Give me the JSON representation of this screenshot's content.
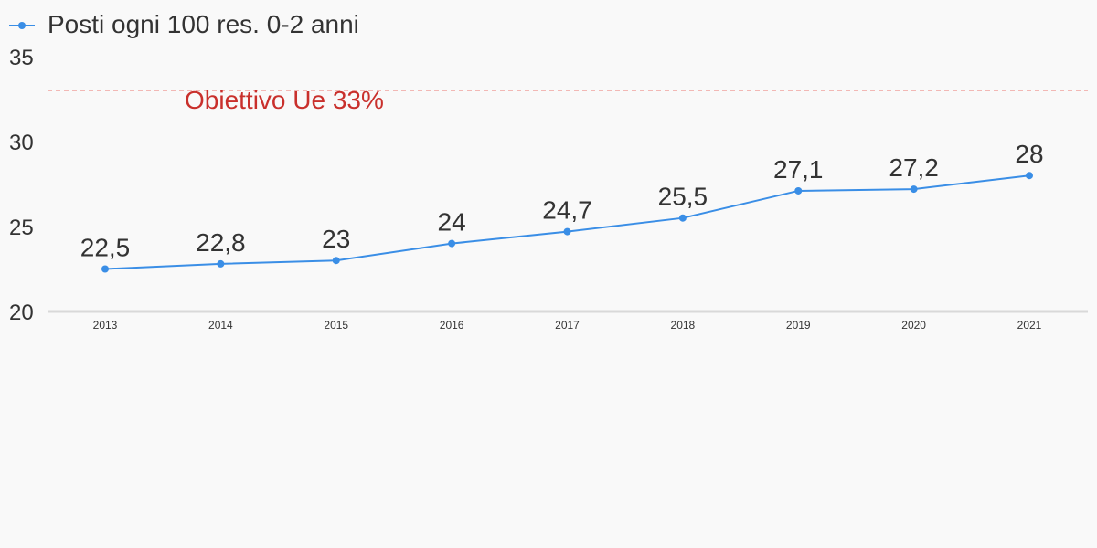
{
  "chart_data": {
    "type": "line",
    "categories": [
      "2013",
      "2014",
      "2015",
      "2016",
      "2017",
      "2018",
      "2019",
      "2020",
      "2021"
    ],
    "series": [
      {
        "name": "Posti ogni 100 res. 0-2 anni",
        "values": [
          22.5,
          22.8,
          23,
          24,
          24.7,
          25.5,
          27.1,
          27.2,
          28
        ],
        "labels": [
          "22,5",
          "22,8",
          "23",
          "24",
          "24,7",
          "25,5",
          "27,1",
          "27,2",
          "28"
        ],
        "color": "#3a8ee6"
      }
    ],
    "ylim": [
      20,
      35
    ],
    "yticks": [
      "20",
      "25",
      "30",
      "35"
    ],
    "reference_line": {
      "value": 33,
      "label": "Obiettivo Ue 33%",
      "color": "#c9302c",
      "line_color": "#f2b8b5"
    },
    "legend_position": "top-left",
    "grid": false,
    "axis_color": "#d9d9d9",
    "xlabel": "",
    "ylabel": ""
  }
}
